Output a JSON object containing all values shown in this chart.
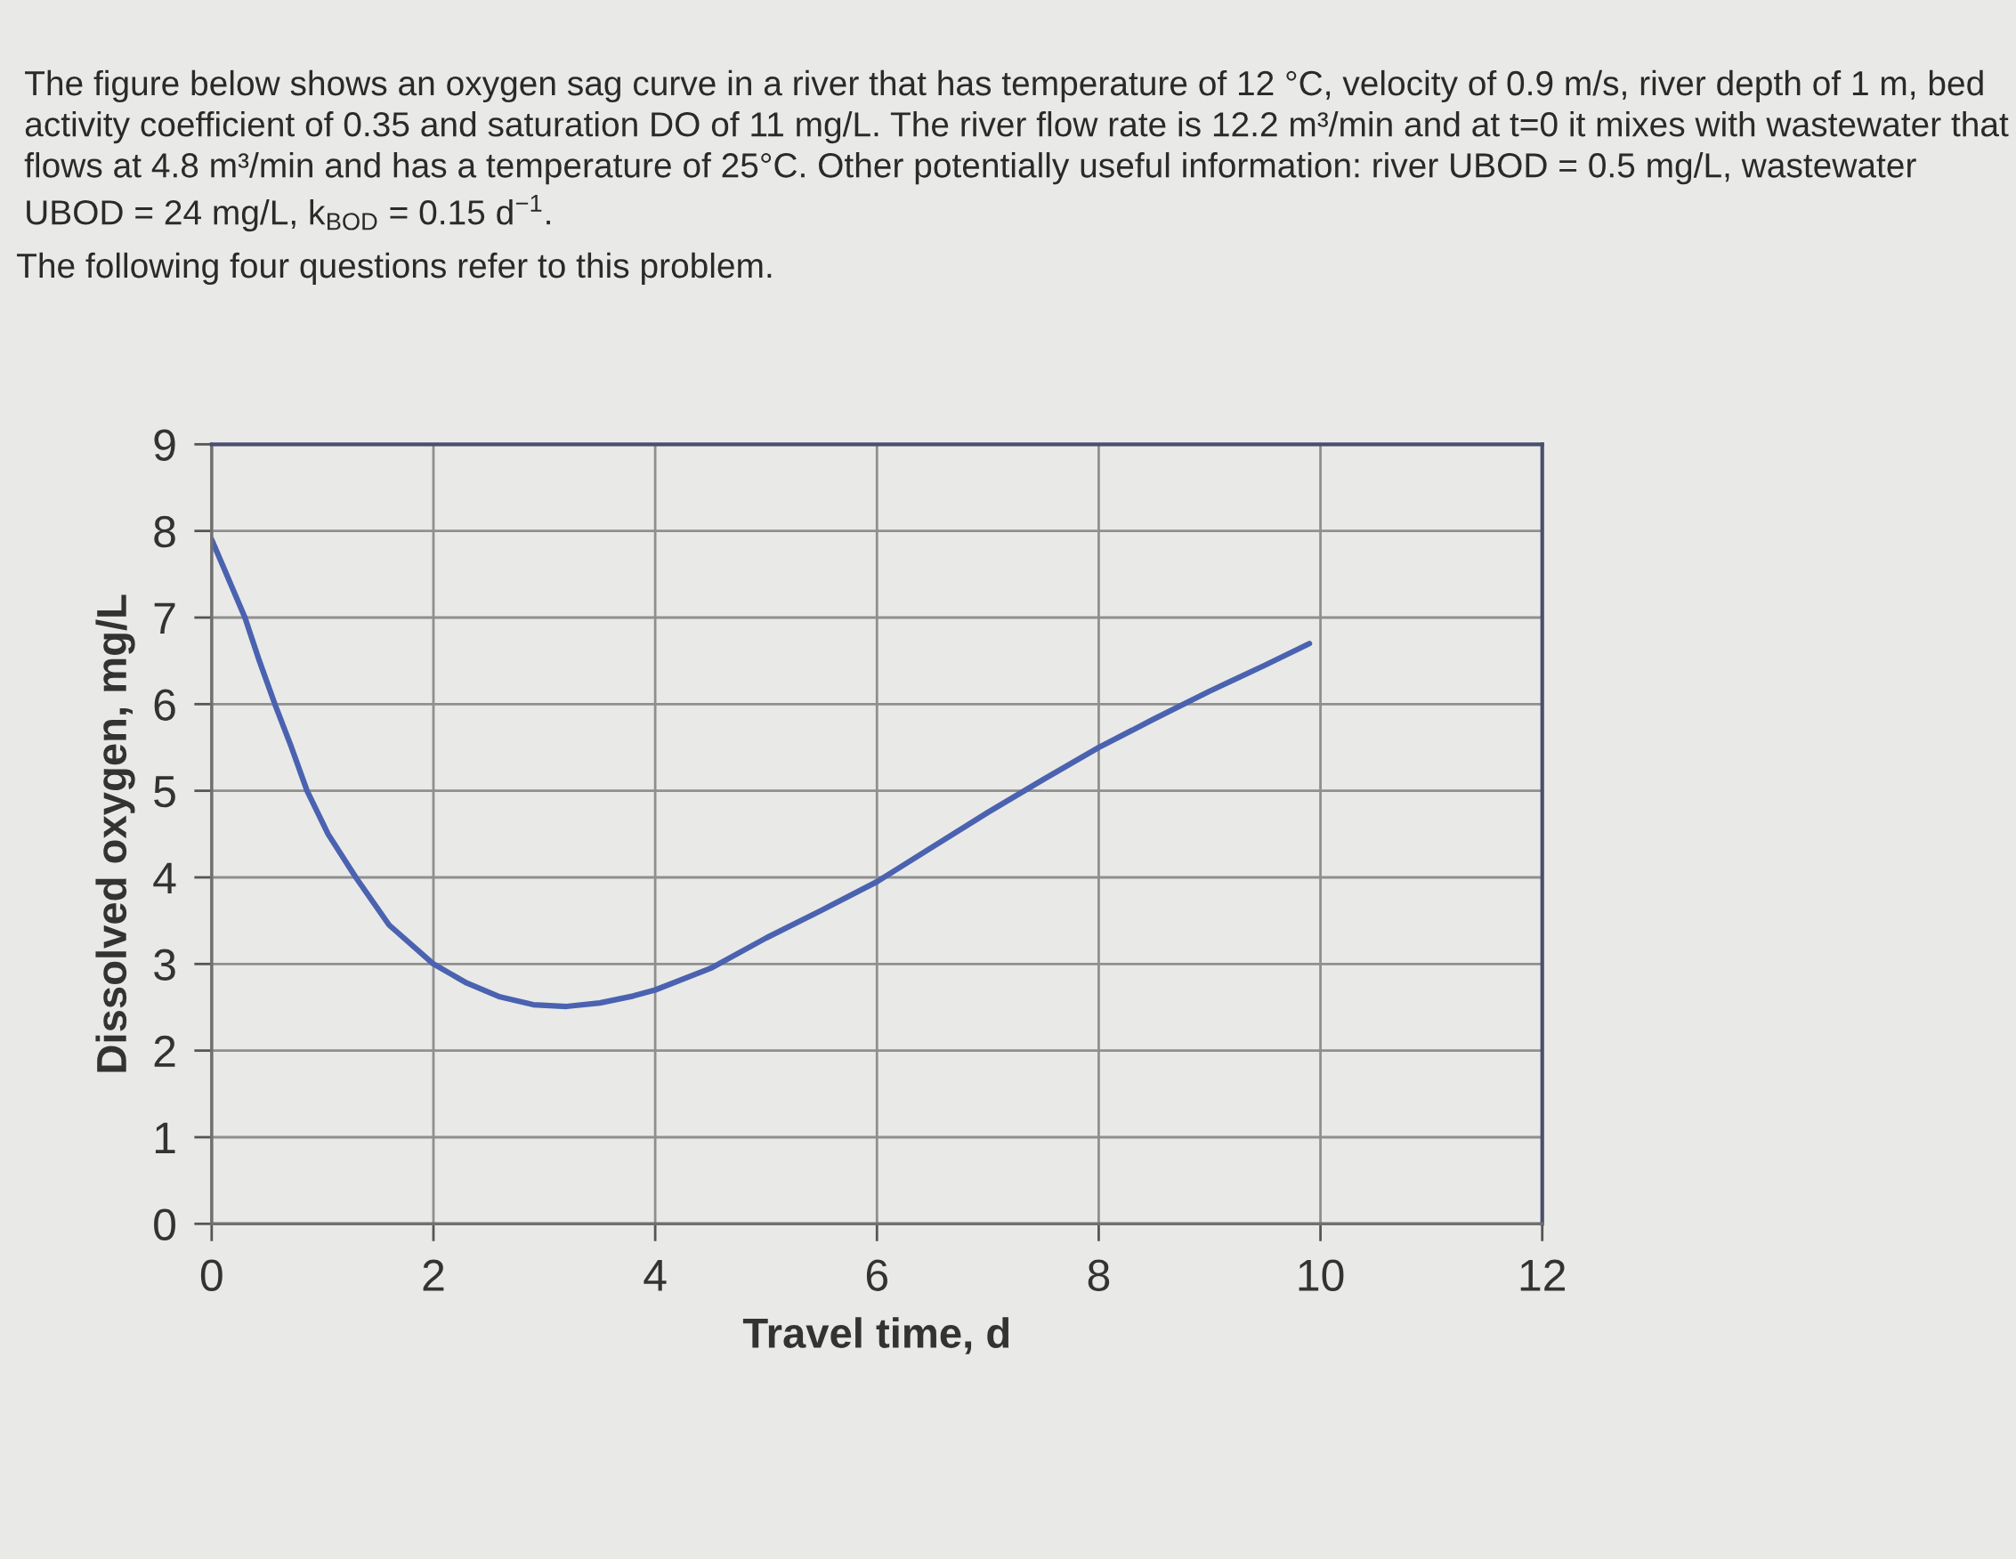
{
  "chart_data": {
    "type": "line",
    "title": "The figure below shows an oxygen sag curve in a river that has temperature of 12 °C, velocity of 0.9 m/s, river depth of 1 m, bed activity coefficient of 0.35 and saturation DO of 11 mg/L. The river flow rate is 12.2 m³/min and at t=0 it mixes with wastewater that flows at 4.8 m³/min and has a temperature of 25°C. Other potentially useful information: river UBOD = 0.5 mg/L, wastewater UBOD = 24 mg/L, k$_{BOD}$ = 0.15 d$^{−1}$.",
    "subtitle": "The following four questions refer to this problem.",
    "xlabel": "Travel time, d",
    "ylabel": "Dissolved oxygen, mg/L",
    "x": [
      0,
      0.1,
      0.2,
      0.3,
      0.43,
      0.57,
      0.72,
      0.86,
      1.05,
      1.3,
      1.6,
      2.0,
      2.3,
      2.6,
      2.9,
      3.2,
      3.5,
      3.8,
      4.0,
      4.5,
      5.0,
      5.5,
      6.0,
      6.5,
      7.0,
      7.5,
      8.0,
      8.5,
      9.0,
      9.5,
      9.9
    ],
    "series": [
      {
        "color": "#4a62b0",
        "values": [
          7.9,
          7.6,
          7.3,
          7.0,
          6.5,
          6.0,
          5.5,
          5.0,
          4.5,
          4.0,
          3.45,
          3.0,
          2.78,
          2.62,
          2.53,
          2.51,
          2.55,
          2.63,
          2.7,
          2.95,
          3.3,
          3.62,
          3.95,
          4.35,
          4.75,
          5.13,
          5.5,
          5.83,
          6.15,
          6.45,
          6.7
        ]
      }
    ],
    "xlim": [
      0,
      12
    ],
    "ylim": [
      0,
      9
    ],
    "xticks": [
      0,
      2,
      4,
      6,
      8,
      10,
      12
    ],
    "yticks": [
      0,
      1,
      2,
      3,
      4,
      5,
      6,
      7,
      8,
      9
    ],
    "grid": true,
    "marker": "none",
    "line_style": "solid"
  }
}
